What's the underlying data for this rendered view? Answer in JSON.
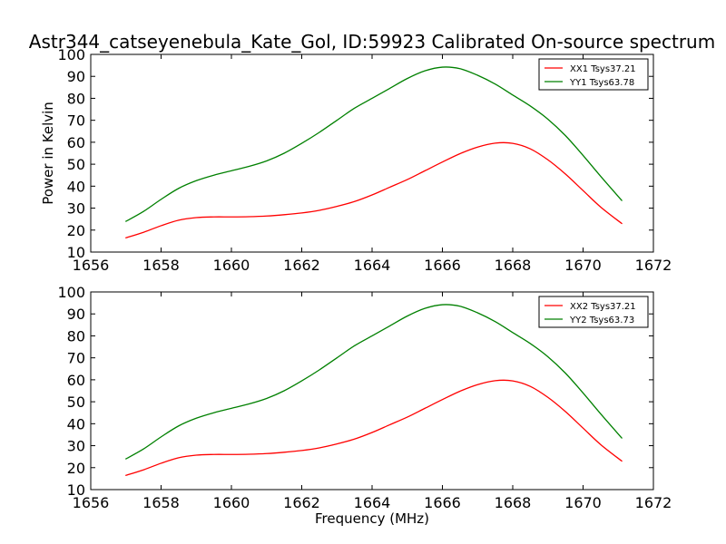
{
  "title": "Astr344_catseyenebula_Kate_Gol, ID:59923 Calibrated On-source spectrum",
  "colors": {
    "xx": "#ff0000",
    "yy": "#008000",
    "axis": "#000000",
    "background": "#ffffff"
  },
  "chart_data": [
    {
      "type": "line",
      "title": "Astr344_catseyenebula_Kate_Gol, ID:59923 Calibrated On-source spectrum",
      "xlabel": "",
      "ylabel": "Power in Kelvin",
      "xlim": [
        1656,
        1672
      ],
      "ylim": [
        10,
        100
      ],
      "xticks": [
        1656,
        1658,
        1660,
        1662,
        1664,
        1666,
        1668,
        1670,
        1672
      ],
      "yticks": [
        10,
        20,
        30,
        40,
        50,
        60,
        70,
        80,
        90,
        100
      ],
      "grid": false,
      "legend": "top-right",
      "series": [
        {
          "name": "XX1 Tsys37.21",
          "color": "#ff0000",
          "x": [
            1657.0,
            1657.5,
            1658.0,
            1658.5,
            1659.0,
            1659.5,
            1660.0,
            1660.5,
            1661.0,
            1661.5,
            1662.0,
            1662.5,
            1663.0,
            1663.5,
            1664.0,
            1664.5,
            1665.0,
            1665.5,
            1666.0,
            1666.5,
            1667.0,
            1667.5,
            1668.0,
            1668.5,
            1669.0,
            1669.5,
            1670.0,
            1670.5,
            1671.1
          ],
          "y": [
            16.5,
            19.0,
            22.0,
            24.5,
            25.7,
            26.0,
            26.0,
            26.1,
            26.4,
            27.0,
            27.8,
            29.0,
            30.8,
            33.0,
            36.0,
            39.5,
            43.0,
            47.0,
            51.0,
            54.8,
            57.8,
            59.6,
            59.5,
            57.0,
            52.0,
            45.5,
            38.0,
            30.5,
            23.0
          ]
        },
        {
          "name": "YY1 Tsys63.78",
          "color": "#008000",
          "x": [
            1657.0,
            1657.5,
            1658.0,
            1658.5,
            1659.0,
            1659.5,
            1660.0,
            1660.5,
            1661.0,
            1661.5,
            1662.0,
            1662.5,
            1663.0,
            1663.5,
            1664.0,
            1664.5,
            1665.0,
            1665.5,
            1666.0,
            1666.5,
            1667.0,
            1667.5,
            1668.0,
            1668.5,
            1669.0,
            1669.5,
            1670.0,
            1670.5,
            1671.1
          ],
          "y": [
            24.0,
            28.5,
            34.0,
            39.0,
            42.5,
            45.0,
            47.0,
            49.0,
            51.5,
            55.0,
            59.5,
            64.5,
            70.0,
            75.5,
            80.0,
            84.5,
            89.0,
            92.5,
            94.2,
            93.5,
            90.5,
            86.5,
            81.5,
            76.5,
            70.5,
            63.0,
            54.0,
            44.5,
            33.5
          ]
        }
      ]
    },
    {
      "type": "line",
      "title": "",
      "xlabel": "Frequency (MHz)",
      "ylabel": "",
      "xlim": [
        1656,
        1672
      ],
      "ylim": [
        10,
        100
      ],
      "xticks": [
        1656,
        1658,
        1660,
        1662,
        1664,
        1666,
        1668,
        1670,
        1672
      ],
      "yticks": [
        10,
        20,
        30,
        40,
        50,
        60,
        70,
        80,
        90,
        100
      ],
      "grid": false,
      "legend": "top-right",
      "series": [
        {
          "name": "XX2 Tsys37.21",
          "color": "#ff0000",
          "x": [
            1657.0,
            1657.5,
            1658.0,
            1658.5,
            1659.0,
            1659.5,
            1660.0,
            1660.5,
            1661.0,
            1661.5,
            1662.0,
            1662.5,
            1663.0,
            1663.5,
            1664.0,
            1664.5,
            1665.0,
            1665.5,
            1666.0,
            1666.5,
            1667.0,
            1667.5,
            1668.0,
            1668.5,
            1669.0,
            1669.5,
            1670.0,
            1670.5,
            1671.1
          ],
          "y": [
            16.5,
            19.0,
            22.0,
            24.5,
            25.7,
            26.0,
            26.0,
            26.1,
            26.4,
            27.0,
            27.8,
            29.0,
            30.8,
            33.0,
            36.0,
            39.5,
            43.0,
            47.0,
            51.0,
            54.8,
            57.8,
            59.6,
            59.5,
            57.0,
            52.0,
            45.5,
            38.0,
            30.5,
            23.0
          ]
        },
        {
          "name": "YY2 Tsys63.73",
          "color": "#008000",
          "x": [
            1657.0,
            1657.5,
            1658.0,
            1658.5,
            1659.0,
            1659.5,
            1660.0,
            1660.5,
            1661.0,
            1661.5,
            1662.0,
            1662.5,
            1663.0,
            1663.5,
            1664.0,
            1664.5,
            1665.0,
            1665.5,
            1666.0,
            1666.5,
            1667.0,
            1667.5,
            1668.0,
            1668.5,
            1669.0,
            1669.5,
            1670.0,
            1670.5,
            1671.1
          ],
          "y": [
            24.0,
            28.5,
            34.0,
            39.0,
            42.5,
            45.0,
            47.0,
            49.0,
            51.5,
            55.0,
            59.5,
            64.5,
            70.0,
            75.5,
            80.0,
            84.5,
            89.0,
            92.5,
            94.2,
            93.5,
            90.5,
            86.5,
            81.5,
            76.5,
            70.5,
            63.0,
            54.0,
            44.5,
            33.5
          ]
        }
      ]
    }
  ]
}
